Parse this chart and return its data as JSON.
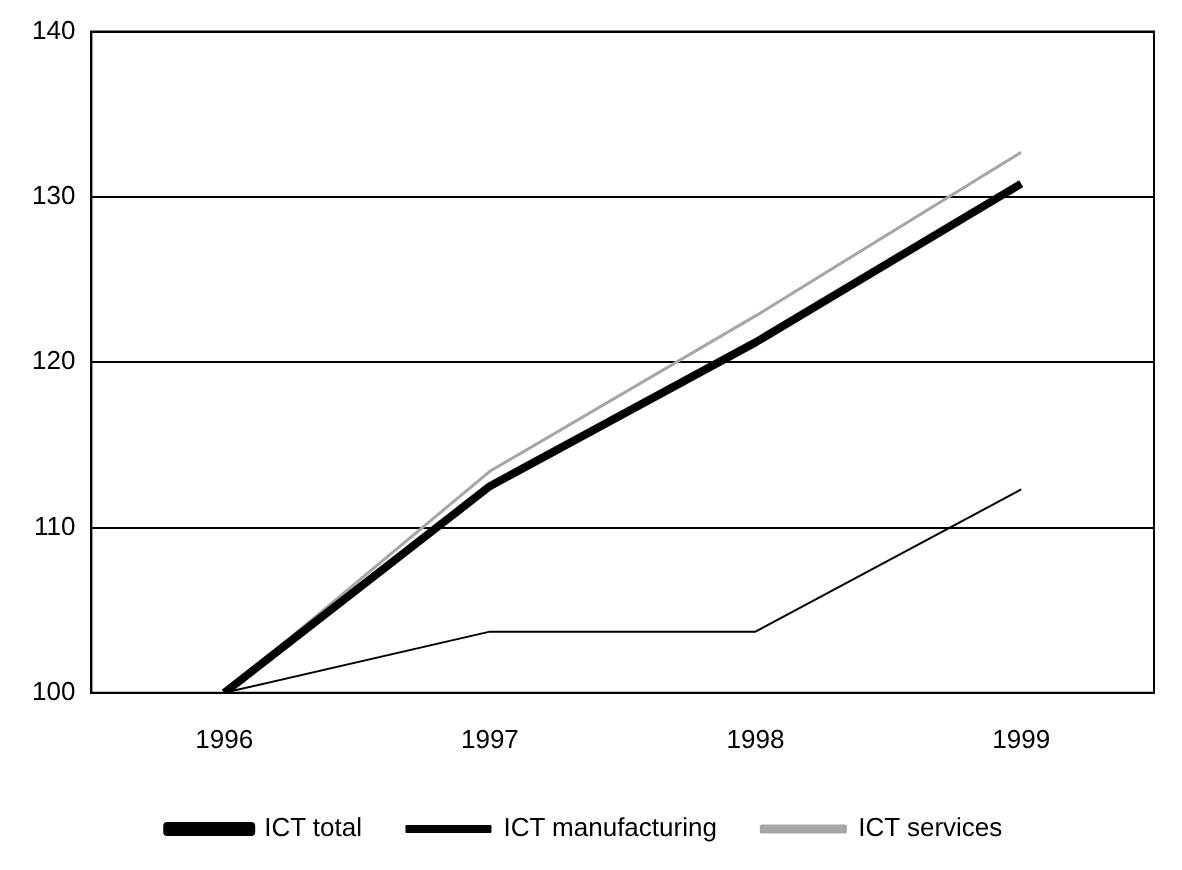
{
  "chart_data": {
    "type": "line",
    "categories": [
      "1996",
      "1997",
      "1998",
      "1999"
    ],
    "series": [
      {
        "name": "ICT total",
        "color": "#000000",
        "values": [
          100,
          112.5,
          121.2,
          130.8
        ]
      },
      {
        "name": "ICT manufacturing",
        "color": "#000000",
        "values": [
          100,
          103.7,
          103.7,
          112.3
        ]
      },
      {
        "name": "ICT services",
        "color": "#a6a6a6",
        "values": [
          100,
          113.4,
          122.8,
          132.7
        ]
      }
    ],
    "ylim": [
      100,
      140
    ],
    "yticks": [
      100,
      110,
      120,
      130,
      140
    ],
    "grid": "y",
    "legend": "bottom",
    "marker": "none",
    "line_style": "solid"
  }
}
